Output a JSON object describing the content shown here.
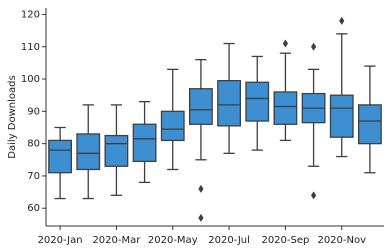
{
  "chart_data": {
    "type": "box",
    "ylabel": "Daily Downloads",
    "categories": [
      "2020-Jan",
      null,
      "2020-Mar",
      null,
      "2020-May",
      null,
      "2020-Jul",
      null,
      "2020-Sep",
      null,
      "2020-Nov",
      null
    ],
    "color": "#3d8fd1",
    "boxes": [
      {
        "min": 63,
        "q1": 71,
        "median": 78,
        "q3": 81,
        "max": 85,
        "outliers": []
      },
      {
        "min": 63,
        "q1": 72,
        "median": 77,
        "q3": 83,
        "max": 92,
        "outliers": []
      },
      {
        "min": 64,
        "q1": 73,
        "median": 80,
        "q3": 82.5,
        "max": 92,
        "outliers": []
      },
      {
        "min": 68,
        "q1": 74.5,
        "median": 81.5,
        "q3": 86,
        "max": 93,
        "outliers": []
      },
      {
        "min": 72,
        "q1": 81,
        "median": 84.5,
        "q3": 90,
        "max": 103,
        "outliers": []
      },
      {
        "min": 75,
        "q1": 86,
        "median": 90.5,
        "q3": 97,
        "max": 106,
        "outliers": [
          66,
          57
        ]
      },
      {
        "min": 77,
        "q1": 85.5,
        "median": 92,
        "q3": 99.5,
        "max": 111,
        "outliers": []
      },
      {
        "min": 78,
        "q1": 87,
        "median": 94,
        "q3": 99,
        "max": 107,
        "outliers": []
      },
      {
        "min": 81,
        "q1": 86,
        "median": 91.5,
        "q3": 96,
        "max": 108,
        "outliers": [
          111
        ]
      },
      {
        "min": 73,
        "q1": 86.5,
        "median": 91,
        "q3": 95.5,
        "max": 103,
        "outliers": [
          110,
          64
        ]
      },
      {
        "min": 76,
        "q1": 82,
        "median": 91,
        "q3": 95,
        "max": 114,
        "outliers": [
          118
        ]
      },
      {
        "min": 71,
        "q1": 80,
        "median": 87,
        "q3": 92,
        "max": 104,
        "outliers": []
      }
    ],
    "ylim": [
      54.5,
      122
    ],
    "yticks": [
      60,
      70,
      80,
      90,
      100,
      110,
      120
    ]
  }
}
